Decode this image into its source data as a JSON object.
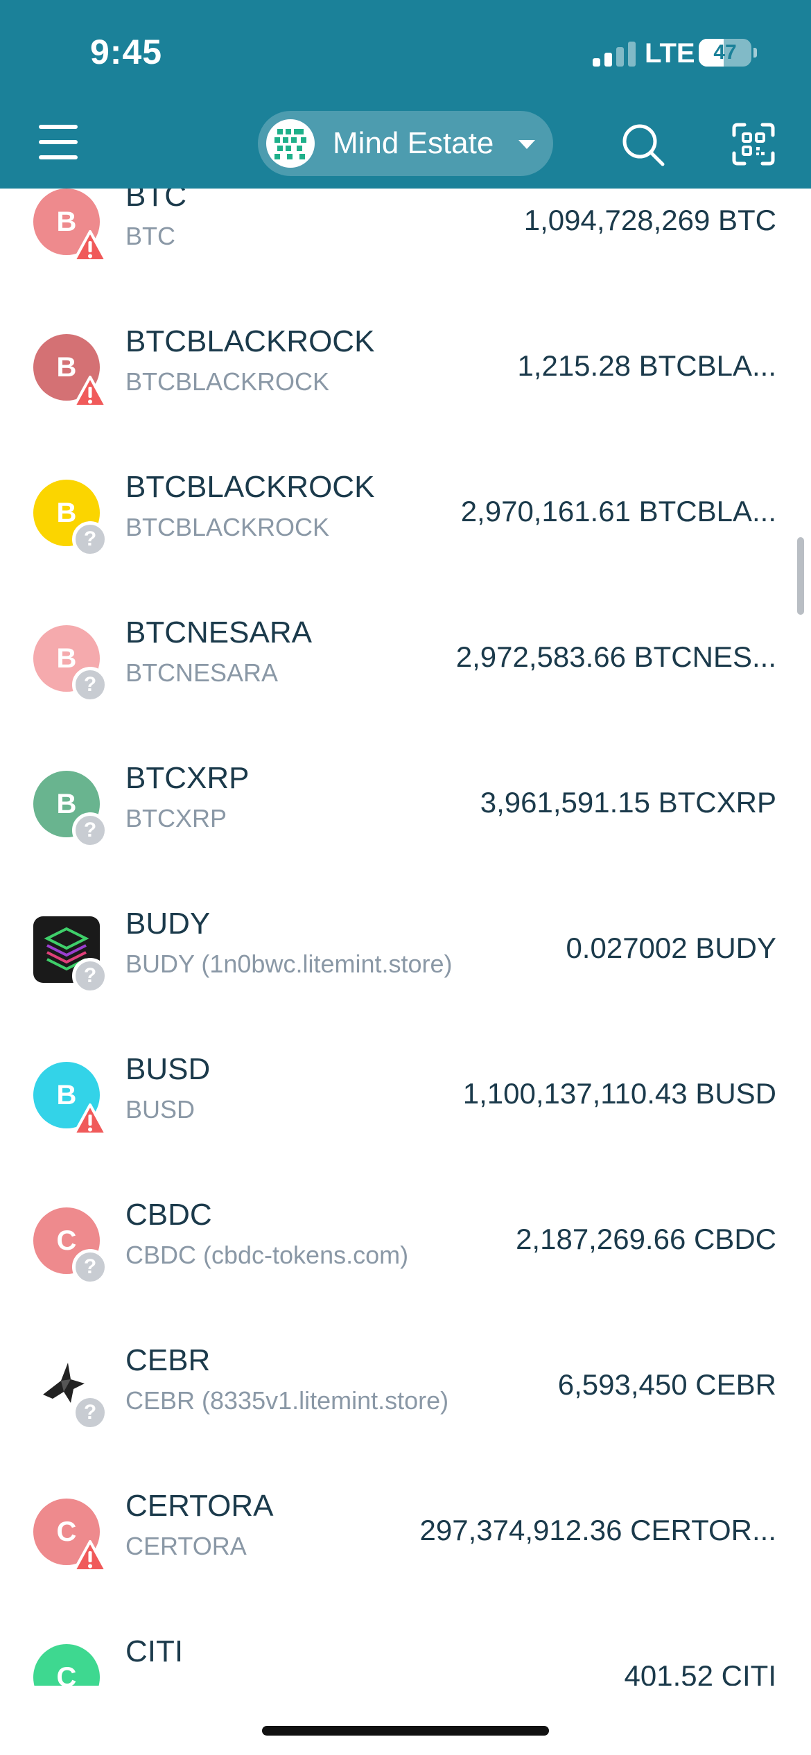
{
  "status_bar": {
    "time": "9:45",
    "network": "LTE",
    "battery": "47",
    "battery_level": 0.47
  },
  "header": {
    "account_name": "Mind Estate"
  },
  "tokens": [
    {
      "symbol": "BTC",
      "name": "BTC",
      "balance": "1,094,728,269 BTC",
      "initial": "B",
      "color": "#ee8a8d",
      "badge": "warning"
    },
    {
      "symbol": "BTCBLACKROCK",
      "name": "BTCBLACKROCK",
      "balance": "1,215.28 BTCBLA...",
      "initial": "B",
      "color": "#d47174",
      "badge": "warning"
    },
    {
      "symbol": "BTCBLACKROCK",
      "name": "BTCBLACKROCK",
      "balance": "2,970,161.61 BTCBLA...",
      "initial": "B",
      "color": "#fbd500",
      "badge": "unknown"
    },
    {
      "symbol": "BTCNESARA",
      "name": "BTCNESARA",
      "balance": "2,972,583.66 BTCNES...",
      "initial": "B",
      "color": "#f5aaad",
      "badge": "unknown"
    },
    {
      "symbol": "BTCXRP",
      "name": "BTCXRP",
      "balance": "3,961,591.15 BTCXRP",
      "initial": "B",
      "color": "#69b48f",
      "badge": "unknown"
    },
    {
      "symbol": "BUDY",
      "name": "BUDY (1n0bwc.litemint.store)",
      "balance": "0.027002 BUDY",
      "initial": "",
      "color": "#1a1a1a",
      "badge": "unknown",
      "logo": "layers-logo"
    },
    {
      "symbol": "BUSD",
      "name": "BUSD",
      "balance": "1,100,137,110.43 BUSD",
      "initial": "B",
      "color": "#33d3e8",
      "badge": "warning"
    },
    {
      "symbol": "CBDC",
      "name": "CBDC (cbdc-tokens.com)",
      "balance": "2,187,269.66 CBDC",
      "initial": "C",
      "color": "#ee8a8d",
      "badge": "unknown"
    },
    {
      "symbol": "CEBR",
      "name": "CEBR (8335v1.litemint.store)",
      "balance": "6,593,450 CEBR",
      "initial": "",
      "color": "#ffffff",
      "badge": "unknown",
      "logo": "bird-logo"
    },
    {
      "symbol": "CERTORA",
      "name": "CERTORA",
      "balance": "297,374,912.36 CERTOR...",
      "initial": "C",
      "color": "#ee8a8d",
      "badge": "warning"
    },
    {
      "symbol": "CITI",
      "name": "",
      "balance": "401.52 CITI",
      "initial": "C",
      "color": "#3ed890",
      "badge": "none"
    }
  ]
}
